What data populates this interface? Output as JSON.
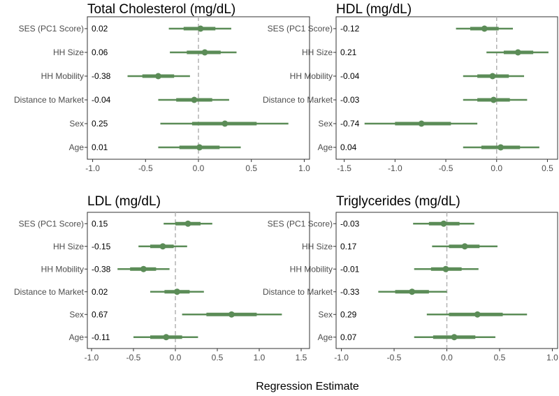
{
  "xlabel": "Regression Estimate",
  "colors": {
    "estimate": "#5b8c57",
    "zero_line": "#b3b3b3",
    "frame": "#333333",
    "tick_text": "#4d4d4d"
  },
  "chart_data": [
    {
      "type": "forest",
      "title": "Total Cholesterol (mg/dL)",
      "categories": [
        "SES (PC1 Score)",
        "HH Size",
        "HH Mobility",
        "Distance to Market",
        "Sex",
        "Age"
      ],
      "labels": [
        "0.02",
        "0.06",
        "-0.38",
        "-0.04",
        "0.25",
        "0.01"
      ],
      "estimates": [
        0.02,
        0.06,
        -0.38,
        -0.04,
        0.25,
        0.01
      ],
      "inner": [
        [
          -0.14,
          0.16
        ],
        [
          -0.11,
          0.21
        ],
        [
          -0.53,
          -0.23
        ],
        [
          -0.21,
          0.13
        ],
        [
          -0.06,
          0.55
        ],
        [
          -0.18,
          0.2
        ]
      ],
      "outer": [
        [
          -0.28,
          0.31
        ],
        [
          -0.27,
          0.36
        ],
        [
          -0.67,
          -0.08
        ],
        [
          -0.38,
          0.29
        ],
        [
          -0.36,
          0.85
        ],
        [
          -0.38,
          0.4
        ]
      ],
      "xlim": [
        -1.05,
        1.05
      ],
      "xticks": [
        -1.0,
        -0.5,
        0.0,
        0.5,
        1.0
      ],
      "xtick_labels": [
        "-1.0",
        "-0.5",
        "0.0",
        "0.5",
        "1.0"
      ]
    },
    {
      "type": "forest",
      "title": "HDL (mg/dL)",
      "categories": [
        "SES (PC1 Score)",
        "HH Size",
        "HH Mobility",
        "Distance to Market",
        "Sex",
        "Age"
      ],
      "labels": [
        "-0.12",
        "0.21",
        "-0.04",
        "-0.03",
        "-0.74",
        "0.04"
      ],
      "estimates": [
        -0.12,
        0.21,
        -0.04,
        -0.03,
        -0.74,
        0.04
      ],
      "inner": [
        [
          -0.26,
          0.02
        ],
        [
          0.07,
          0.36
        ],
        [
          -0.19,
          0.12
        ],
        [
          -0.19,
          0.13
        ],
        [
          -1.0,
          -0.45
        ],
        [
          -0.15,
          0.23
        ]
      ],
      "outer": [
        [
          -0.4,
          0.16
        ],
        [
          -0.1,
          0.51
        ],
        [
          -0.33,
          0.27
        ],
        [
          -0.33,
          0.3
        ],
        [
          -1.3,
          -0.19
        ],
        [
          -0.33,
          0.42
        ]
      ],
      "xlim": [
        -1.58,
        0.6
      ],
      "xticks": [
        -1.5,
        -1.0,
        -0.5,
        0.0,
        0.5
      ],
      "xtick_labels": [
        "-1.5",
        "-1.0",
        "-0.5",
        "0.0",
        "0.5"
      ]
    },
    {
      "type": "forest",
      "title": "LDL (mg/dL)",
      "categories": [
        "SES (PC1 Score)",
        "HH Size",
        "HH Mobility",
        "Distance to Market",
        "Sex",
        "Age"
      ],
      "labels": [
        "0.15",
        "-0.15",
        "-0.38",
        "0.02",
        "0.67",
        "-0.11"
      ],
      "estimates": [
        0.15,
        -0.15,
        -0.38,
        0.02,
        0.67,
        -0.11
      ],
      "inner": [
        [
          0.0,
          0.3
        ],
        [
          -0.3,
          -0.02
        ],
        [
          -0.54,
          -0.23
        ],
        [
          -0.13,
          0.17
        ],
        [
          0.37,
          0.97
        ],
        [
          -0.3,
          0.08
        ]
      ],
      "outer": [
        [
          -0.14,
          0.44
        ],
        [
          -0.44,
          0.14
        ],
        [
          -0.69,
          -0.07
        ],
        [
          -0.3,
          0.34
        ],
        [
          0.08,
          1.27
        ],
        [
          -0.5,
          0.27
        ]
      ],
      "xlim": [
        -1.05,
        1.6
      ],
      "xticks": [
        -1.0,
        -0.5,
        0.0,
        0.5,
        1.0,
        1.5
      ],
      "xtick_labels": [
        "-1.0",
        "-0.5",
        "0.0",
        "0.5",
        "1.0",
        "1.5"
      ]
    },
    {
      "type": "forest",
      "title": "Triglycerides (mg/dL)",
      "categories": [
        "SES (PC1 Score)",
        "HH Size",
        "HH Mobility",
        "Distance to Market",
        "Sex",
        "Age"
      ],
      "labels": [
        "-0.03",
        "0.17",
        "-0.01",
        "-0.33",
        "0.29",
        "0.07"
      ],
      "estimates": [
        -0.03,
        0.17,
        -0.01,
        -0.33,
        0.29,
        0.07
      ],
      "inner": [
        [
          -0.17,
          0.12
        ],
        [
          0.02,
          0.31
        ],
        [
          -0.15,
          0.14
        ],
        [
          -0.49,
          -0.17
        ],
        [
          0.02,
          0.53
        ],
        [
          -0.13,
          0.27
        ]
      ],
      "outer": [
        [
          -0.32,
          0.26
        ],
        [
          -0.14,
          0.48
        ],
        [
          -0.31,
          0.3
        ],
        [
          -0.65,
          0.0
        ],
        [
          -0.19,
          0.76
        ],
        [
          -0.31,
          0.46
        ]
      ],
      "xlim": [
        -1.05,
        1.05
      ],
      "xticks": [
        -1.0,
        -0.5,
        0.0,
        0.5,
        1.0
      ],
      "xtick_labels": [
        "-1.0",
        "-0.5",
        "0.0",
        "0.5",
        "1.0"
      ]
    }
  ]
}
